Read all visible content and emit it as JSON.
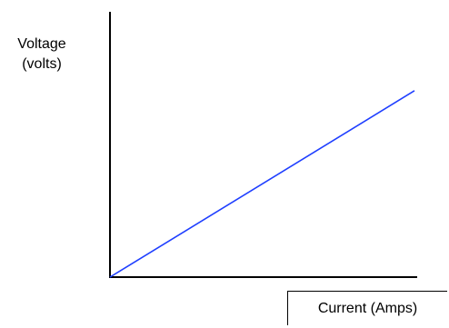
{
  "chart_data": {
    "type": "line",
    "ylabel_line1": "Voltage",
    "ylabel_line2": "(volts)",
    "xlabel": "Current (Amps)",
    "xlim": [
      0,
      1
    ],
    "ylim": [
      0,
      1
    ],
    "grid": false,
    "series": [
      {
        "x": [
          0,
          1
        ],
        "y": [
          0,
          0.78
        ],
        "color": "#1f3fff"
      }
    ]
  }
}
